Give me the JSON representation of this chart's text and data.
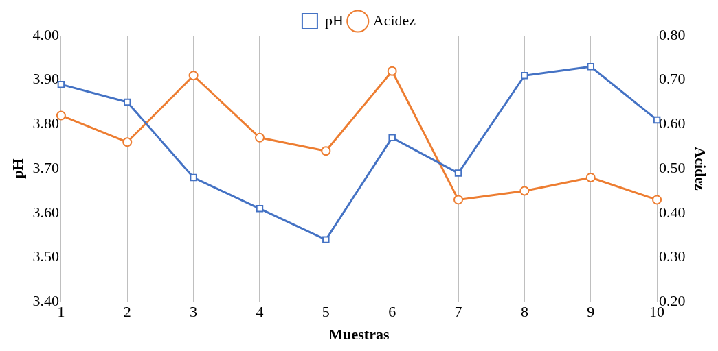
{
  "chart_data": {
    "type": "line",
    "xlabel": "Muestras",
    "ylabel": "pH",
    "y2label": "Acidez",
    "categories": [
      "1",
      "2",
      "3",
      "4",
      "5",
      "6",
      "7",
      "8",
      "9",
      "10"
    ],
    "series": [
      {
        "name": "pH",
        "color": "#4472c4",
        "marker": "square",
        "values": [
          3.89,
          3.85,
          3.68,
          3.61,
          3.54,
          3.77,
          3.69,
          3.91,
          3.93,
          3.81
        ]
      },
      {
        "name": "Acidez",
        "color": "#ed7d31",
        "marker": "circle",
        "axis": "y2",
        "values": [
          0.62,
          0.56,
          0.71,
          0.57,
          0.54,
          0.72,
          0.43,
          0.45,
          0.48,
          0.43
        ]
      }
    ],
    "ylim": [
      3.4,
      4.0
    ],
    "yticks": [
      {
        "value": 3.4,
        "label": "3.40"
      },
      {
        "value": 3.5,
        "label": "3.50"
      },
      {
        "value": 3.6,
        "label": "3.60"
      },
      {
        "value": 3.7,
        "label": "3.70"
      },
      {
        "value": 3.8,
        "label": "3.80"
      },
      {
        "value": 3.9,
        "label": "3.90"
      },
      {
        "value": 4.0,
        "label": "4.00"
      }
    ],
    "y2lim": [
      0.2,
      0.8
    ],
    "y2ticks": [
      {
        "value": 0.2,
        "label": "0.20"
      },
      {
        "value": 0.3,
        "label": "0.30"
      },
      {
        "value": 0.4,
        "label": "0.40"
      },
      {
        "value": 0.5,
        "label": "0.50"
      },
      {
        "value": 0.6,
        "label": "0.60"
      },
      {
        "value": 0.7,
        "label": "0.70"
      },
      {
        "value": 0.8,
        "label": "0.80"
      }
    ],
    "grid": "x",
    "legend": "top",
    "line_style": "solid"
  }
}
